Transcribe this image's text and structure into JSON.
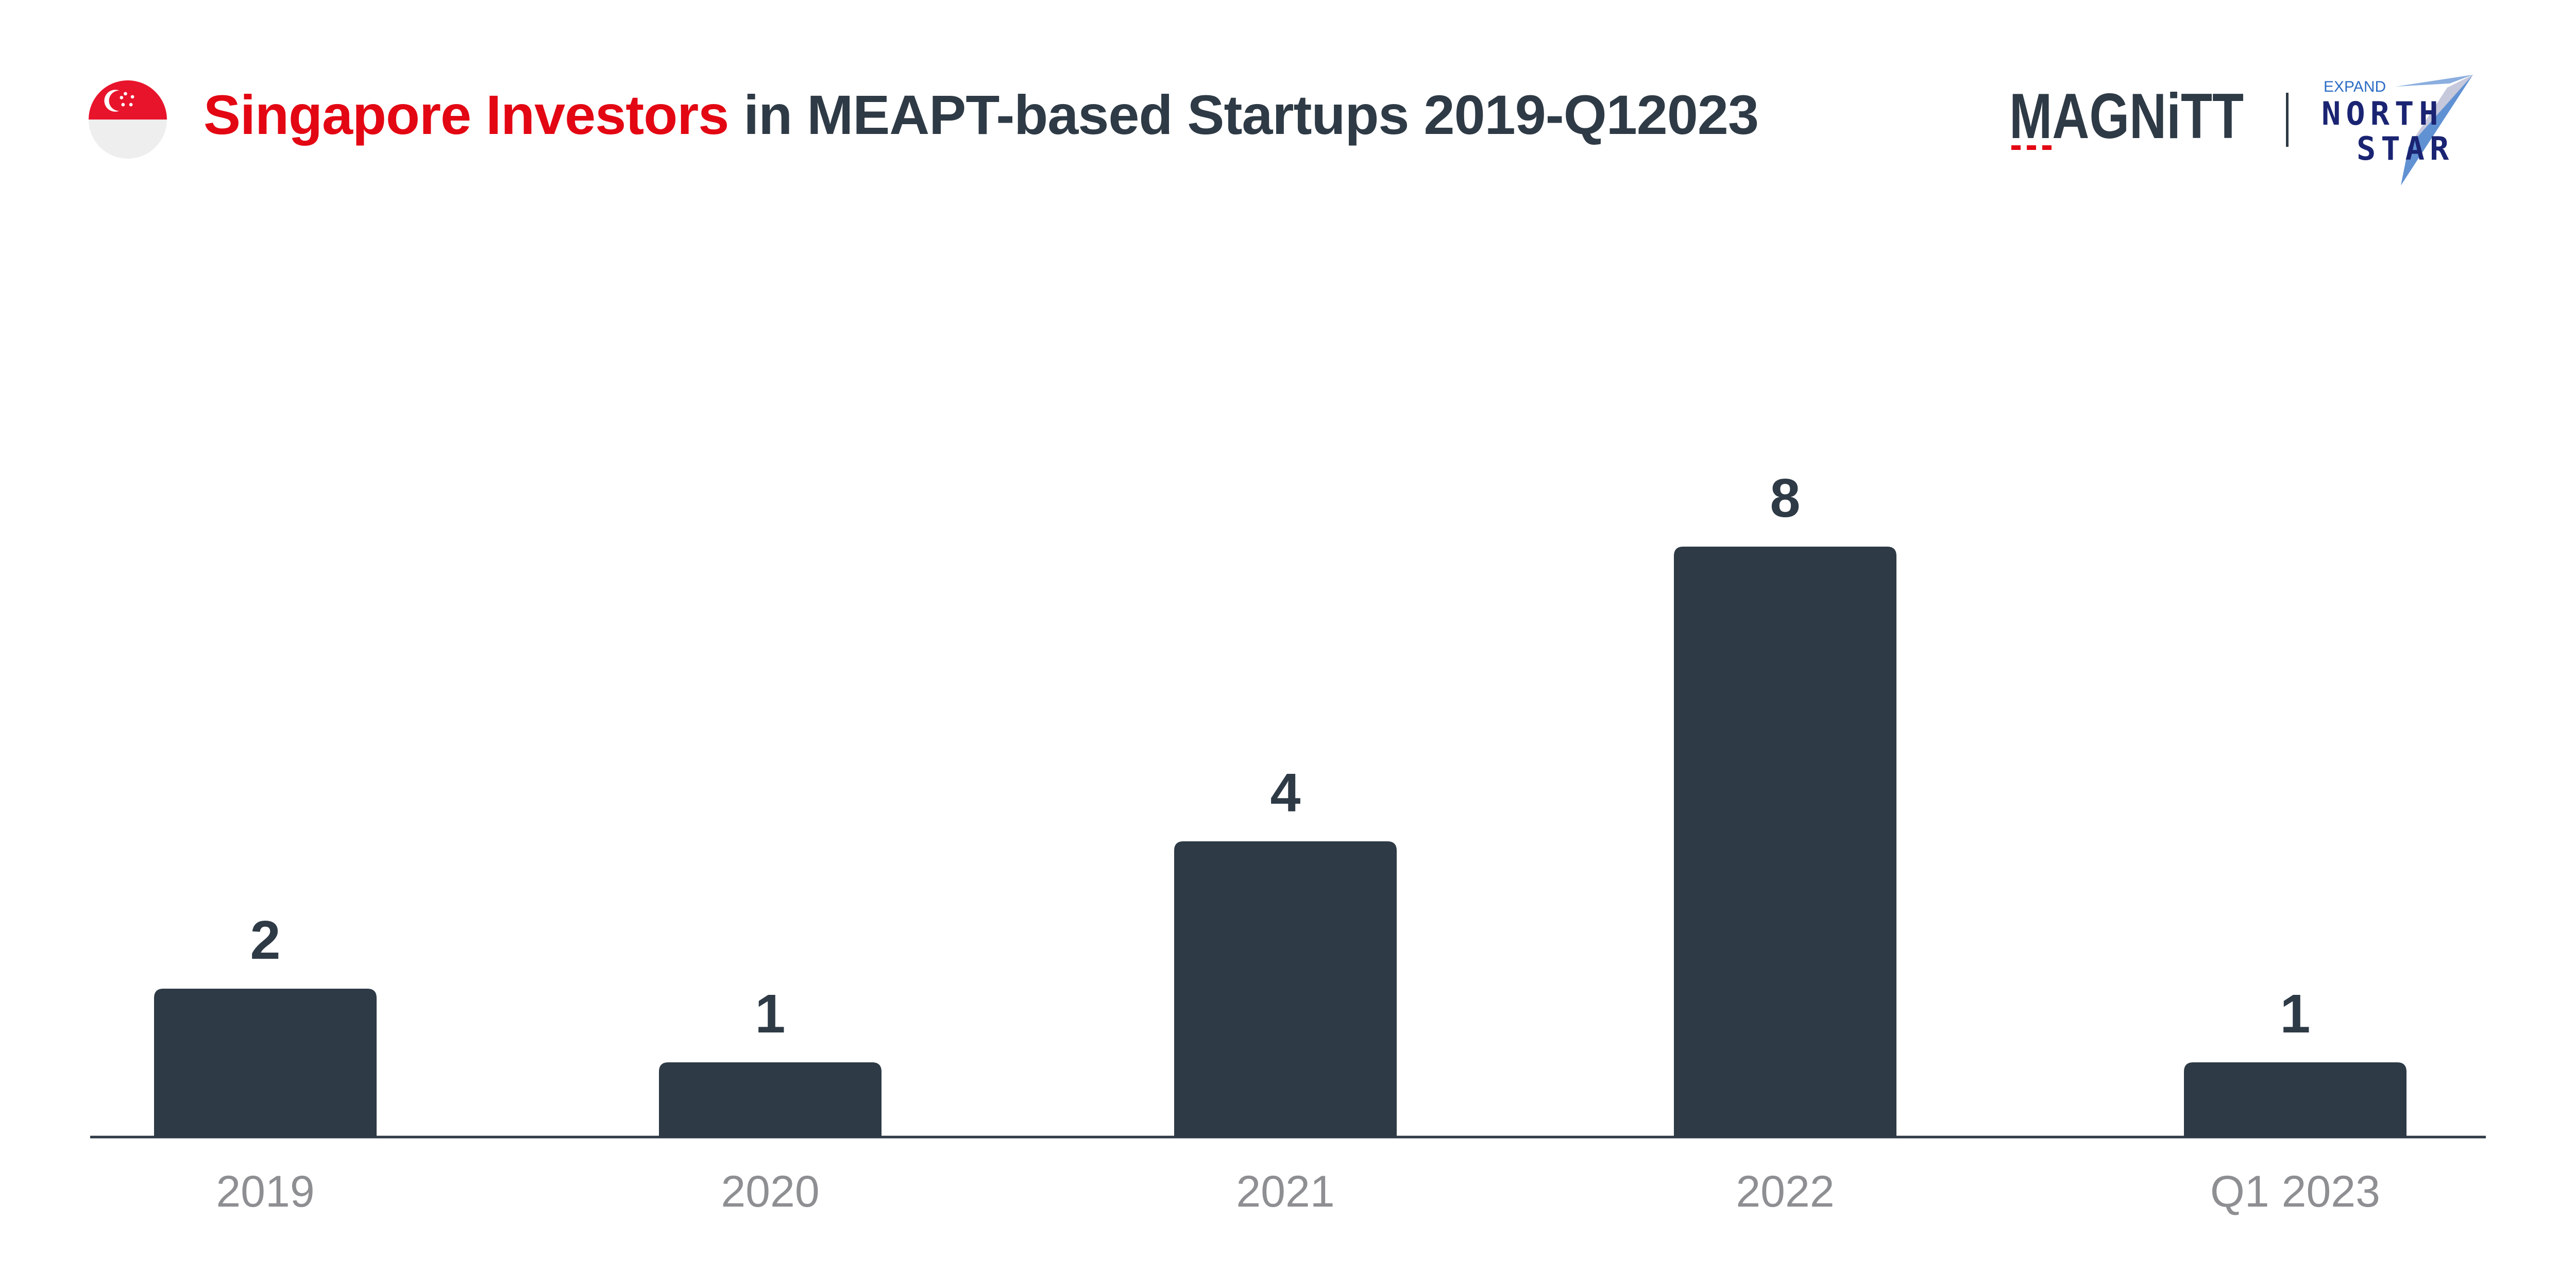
{
  "header": {
    "title_highlight": "Singapore Investors",
    "title_rest": " in MEAPT-based Startups 2019-Q12023",
    "flag_icon": "singapore-flag-icon",
    "brand_logo_text": "MAGNiTT",
    "partner_logo_small": "EXPAND",
    "partner_logo_line1": "NORTH",
    "partner_logo_line2": "STAR"
  },
  "colors": {
    "bar": "#2e3a45",
    "title_highlight": "#e30613",
    "title": "#2e3a45",
    "tick_label": "#8d8f92",
    "axis": "#2e3a45",
    "partner_logo": "#1a2472",
    "partner_accent": "#2b6cc4"
  },
  "chart_data": {
    "type": "bar",
    "categories": [
      "2019",
      "2020",
      "2021",
      "2022",
      "Q1 2023"
    ],
    "values": [
      2,
      1,
      4,
      8,
      1
    ],
    "title": "Singapore Investors in MEAPT-based Startups 2019-Q12023",
    "xlabel": "",
    "ylabel": "",
    "ylim": [
      0,
      8
    ],
    "grid": false,
    "legend": "none",
    "data_labels": true
  }
}
